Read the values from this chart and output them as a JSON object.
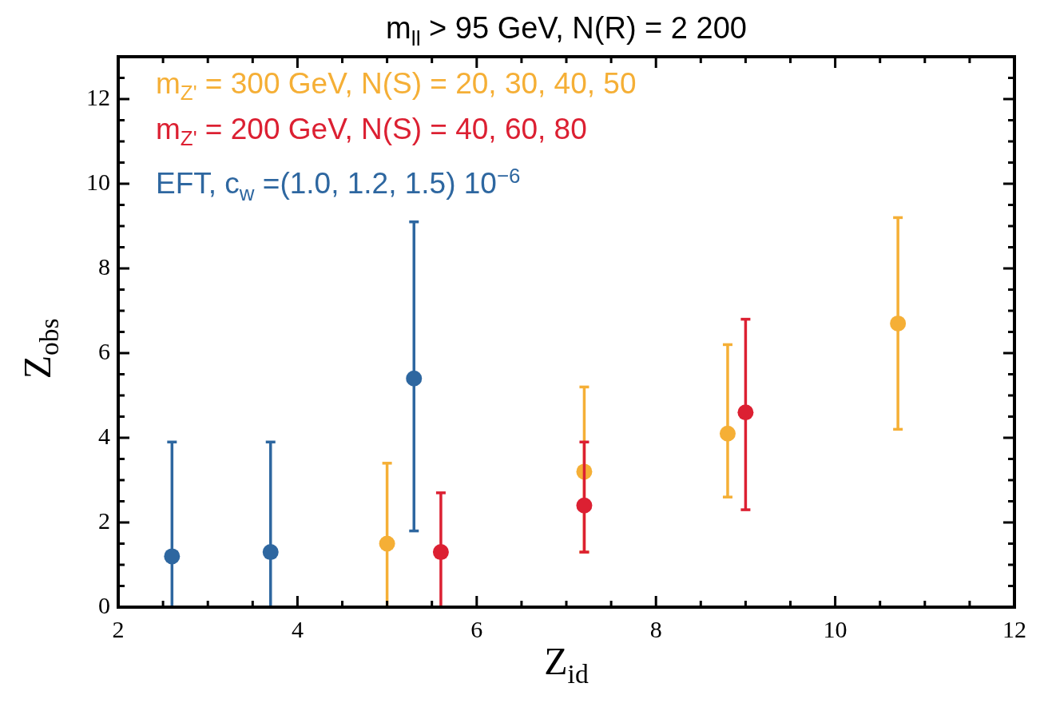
{
  "chart_data": {
    "type": "scatter",
    "title": "m$_{ll}$ > 95 GeV, N(R) = 2 200",
    "xlabel": "Z$_{id}$",
    "ylabel": "Z$_{obs}$",
    "xlim": [
      2,
      12
    ],
    "ylim": [
      0,
      13
    ],
    "xticks": [
      2,
      {
        "value": 2.5,
        "label": null
      },
      {
        "value": 3,
        "label": null
      },
      {
        "value": 3.5,
        "label": null
      },
      4,
      {
        "value": 4.5,
        "label": null
      },
      {
        "value": 5,
        "label": null
      },
      {
        "value": 5.5,
        "label": null
      },
      6,
      {
        "value": 6.5,
        "label": null
      },
      {
        "value": 7,
        "label": null
      },
      {
        "value": 7.5,
        "label": null
      },
      8,
      {
        "value": 8.5,
        "label": null
      },
      {
        "value": 9,
        "label": null
      },
      {
        "value": 9.5,
        "label": null
      },
      10,
      {
        "value": 10.5,
        "label": null
      },
      {
        "value": 11,
        "label": null
      },
      {
        "value": 11.5,
        "label": null
      },
      12
    ],
    "yticks": [
      0,
      {
        "value": 0.5,
        "label": null
      },
      {
        "value": 1,
        "label": null
      },
      {
        "value": 1.5,
        "label": null
      },
      2,
      {
        "value": 2.5,
        "label": null
      },
      {
        "value": 3,
        "label": null
      },
      {
        "value": 3.5,
        "label": null
      },
      4,
      {
        "value": 4.5,
        "label": null
      },
      {
        "value": 5,
        "label": null
      },
      {
        "value": 5.5,
        "label": null
      },
      6,
      {
        "value": 6.5,
        "label": null
      },
      {
        "value": 7,
        "label": null
      },
      {
        "value": 7.5,
        "label": null
      },
      8,
      {
        "value": 8.5,
        "label": null
      },
      {
        "value": 9,
        "label": null
      },
      {
        "value": 9.5,
        "label": null
      },
      10,
      {
        "value": 10.5,
        "label": null
      },
      {
        "value": 11,
        "label": null
      },
      {
        "value": 11.5,
        "label": null
      },
      12,
      {
        "value": 12.5,
        "label": null
      },
      {
        "value": 13,
        "label": null
      }
    ],
    "legend": "top left",
    "marker": "circle",
    "grid": false,
    "series": [
      {
        "name": "m$_{Z'}$ = 300 GeV, N(S) = 20, 30, 40, 50",
        "color": "#f5af36",
        "x": [
          5.0,
          7.2,
          8.8,
          10.7
        ],
        "values": [
          1.5,
          3.2,
          4.1,
          6.7
        ],
        "errors": [
          [
            0,
            3.4
          ],
          [
            1.3,
            5.2
          ],
          [
            2.6,
            6.2
          ],
          [
            4.2,
            9.2
          ]
        ]
      },
      {
        "name": "m$_{Z'}$ = 200 GeV, N(S) = 40, 60, 80",
        "color": "#dc2032",
        "x": [
          5.6,
          7.2,
          9.0
        ],
        "values": [
          1.3,
          2.4,
          4.6
        ],
        "errors": [
          [
            0,
            2.7
          ],
          [
            1.3,
            3.9
          ],
          [
            2.3,
            6.8
          ]
        ]
      },
      {
        "name": "EFT, c$_{w}$ =(1.0, 1.2, 1.5) 10$^{−6}$",
        "color": "#2e67a0",
        "x": [
          2.6,
          3.7,
          5.3
        ],
        "values": [
          1.2,
          1.3,
          5.4
        ],
        "errors": [
          [
            0,
            3.9
          ],
          [
            0,
            3.9
          ],
          [
            1.8,
            9.1
          ]
        ]
      }
    ]
  }
}
